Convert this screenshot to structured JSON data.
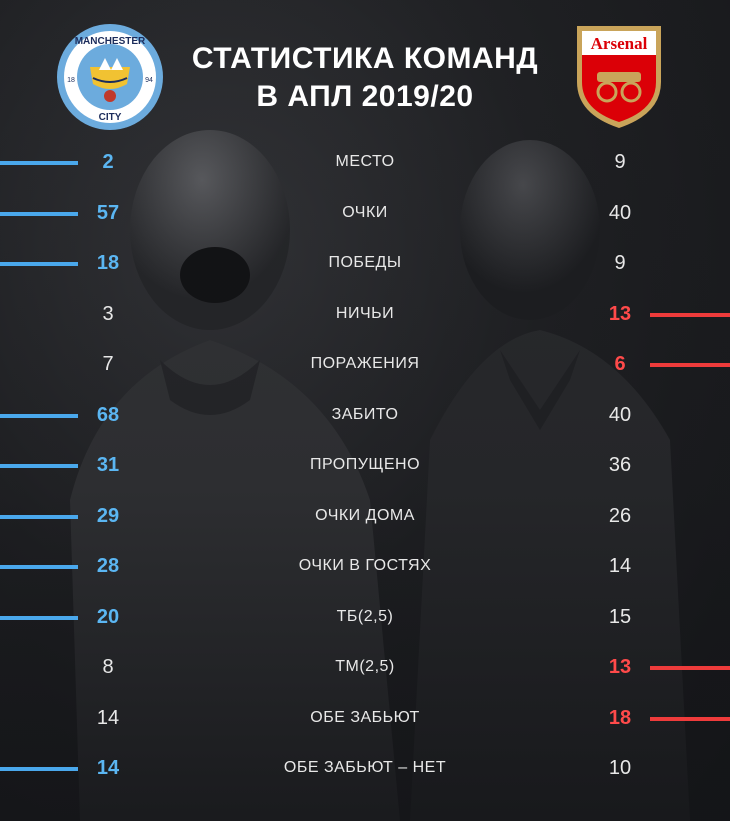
{
  "title": {
    "line1": "СТАТИСТИКА КОМАНД",
    "line2": "В АПЛ 2019/20"
  },
  "teams": {
    "left": {
      "logo_text_top": "MANCHESTER",
      "logo_text_bottom": "CITY",
      "logo_year_left": "18",
      "logo_year_right": "94",
      "color": "#4aa8ec"
    },
    "right": {
      "logo_text": "Arsenal",
      "color": "#ee3b3b"
    }
  },
  "stats": [
    {
      "label": "МЕСТО",
      "left": "2",
      "right": "9",
      "winner": "left"
    },
    {
      "label": "ОЧКИ",
      "left": "57",
      "right": "40",
      "winner": "left"
    },
    {
      "label": "ПОБЕДЫ",
      "left": "18",
      "right": "9",
      "winner": "left"
    },
    {
      "label": "НИЧЬИ",
      "left": "3",
      "right": "13",
      "winner": "right"
    },
    {
      "label": "ПОРАЖЕНИЯ",
      "left": "7",
      "right": "6",
      "winner": "right"
    },
    {
      "label": "ЗАБИТО",
      "left": "68",
      "right": "40",
      "winner": "left"
    },
    {
      "label": "ПРОПУЩЕНО",
      "left": "31",
      "right": "36",
      "winner": "left"
    },
    {
      "label": "ОЧКИ ДОМА",
      "left": "29",
      "right": "26",
      "winner": "left"
    },
    {
      "label": "ОЧКИ В ГОСТЯХ",
      "left": "28",
      "right": "14",
      "winner": "left"
    },
    {
      "label": "ТБ(2,5)",
      "left": "20",
      "right": "15",
      "winner": "left"
    },
    {
      "label": "ТМ(2,5)",
      "left": "8",
      "right": "13",
      "winner": "right"
    },
    {
      "label": "ОБЕ ЗАБЬЮТ",
      "left": "14",
      "right": "18",
      "winner": "right"
    },
    {
      "label": "ОБЕ ЗАБЬЮТ – НЕТ",
      "left": "14",
      "right": "10",
      "winner": "left"
    }
  ]
}
